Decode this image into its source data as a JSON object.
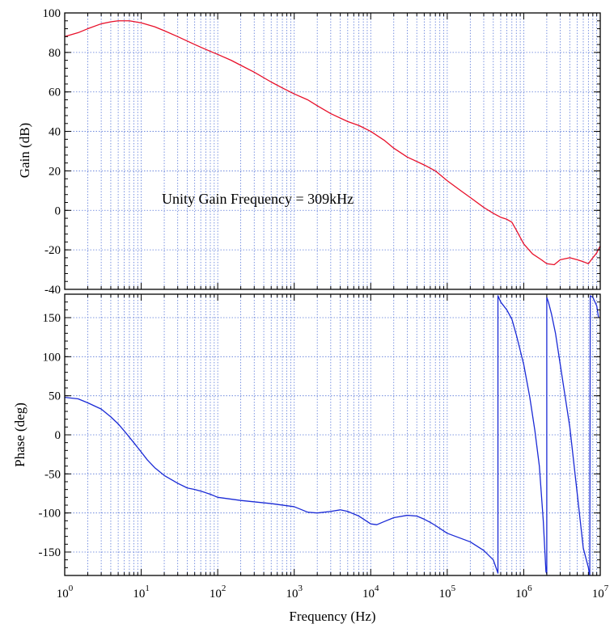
{
  "chart_data": [
    {
      "type": "line",
      "panel": "gain",
      "title": "",
      "xlabel": "",
      "ylabel": "Gain (dB)",
      "xscale": "log",
      "xlim": [
        1,
        10000000
      ],
      "ylim": [
        -40,
        100
      ],
      "yticks": [
        -40,
        -20,
        0,
        20,
        40,
        60,
        80,
        100
      ],
      "grid": true,
      "annotation": "Unity Gain Frequency = 309kHz",
      "colors": {
        "series": "#e8102a"
      },
      "series": [
        {
          "x": [
            1,
            1.5,
            2,
            3,
            4,
            5,
            7,
            10,
            15,
            20,
            30,
            50,
            70,
            100,
            150,
            200,
            300,
            500,
            700,
            1000,
            1500,
            2000,
            3000,
            5000,
            7000,
            10000,
            15000,
            20000,
            30000,
            50000,
            70000,
            100000,
            150000,
            200000,
            300000,
            400000,
            500000,
            600000,
            700000,
            800000,
            1000000,
            1300000,
            1700000,
            2000000,
            2500000,
            3000000,
            4000000,
            5000000,
            6000000,
            7000000,
            8000000,
            9000000,
            10000000
          ],
          "y": [
            88,
            90,
            92,
            94.5,
            95.5,
            96,
            96,
            95,
            93,
            91,
            88,
            84,
            81.5,
            79,
            76,
            73.5,
            70,
            65,
            62,
            59,
            56,
            53,
            49,
            45,
            43,
            40,
            35.5,
            31.5,
            27,
            23,
            20,
            15,
            10,
            6.5,
            1.5,
            -1.5,
            -3.5,
            -4.5,
            -6,
            -10,
            -17,
            -22,
            -25,
            -27,
            -27.5,
            -25,
            -24,
            -25,
            -26,
            -27,
            -24,
            -21.5,
            -18
          ]
        }
      ]
    },
    {
      "type": "line",
      "panel": "phase",
      "title": "",
      "xlabel": "Frequency (Hz)",
      "ylabel": "Phase (deg)",
      "xscale": "log",
      "xlim": [
        1,
        10000000
      ],
      "ylim": [
        -180,
        180
      ],
      "yticks": [
        -150,
        -100,
        -50,
        0,
        50,
        100,
        150
      ],
      "xticks": [
        1,
        10,
        100,
        1000,
        10000,
        100000,
        1000000,
        10000000
      ],
      "xtick_labels": [
        {
          "base": "10",
          "exp": "0"
        },
        {
          "base": "10",
          "exp": "1"
        },
        {
          "base": "10",
          "exp": "2"
        },
        {
          "base": "10",
          "exp": "3"
        },
        {
          "base": "10",
          "exp": "4"
        },
        {
          "base": "10",
          "exp": "5"
        },
        {
          "base": "10",
          "exp": "6"
        },
        {
          "base": "10",
          "exp": "7"
        }
      ],
      "grid": true,
      "colors": {
        "series": "#1a2ad6"
      },
      "series": [
        {
          "x": [
            1,
            1.5,
            2,
            3,
            4,
            5,
            6,
            8,
            10,
            12,
            15,
            20,
            30,
            40,
            50,
            60,
            80,
            100,
            200,
            500,
            1000,
            1500,
            2000,
            3000,
            4000,
            5000,
            7000,
            10000,
            12000,
            15000,
            20000,
            30000,
            40000,
            50000,
            60000,
            70000,
            100000,
            200000,
            300000,
            400000,
            460000,
            460000,
            470000,
            500000,
            600000,
            700000,
            800000,
            1000000,
            1200000,
            1400000,
            1600000,
            1800000,
            1950000,
            2000000,
            2000000,
            2100000,
            2300000,
            2600000,
            3000000,
            4000000,
            5000000,
            6000000,
            7000000,
            7200000,
            7300000,
            7400000,
            8000000,
            9000000,
            9500000
          ],
          "y": [
            48,
            46,
            41,
            33,
            23,
            14,
            5,
            -10,
            -22,
            -32,
            -42,
            -52,
            -62,
            -68,
            -70,
            -72,
            -76,
            -80,
            -84,
            -88,
            -92,
            -99,
            -100,
            -98,
            -96,
            -98,
            -104,
            -114,
            -115,
            -111,
            -106,
            -103,
            -104,
            -108,
            -112,
            -116,
            -126,
            -137,
            -148,
            -160,
            -177,
            178,
            176,
            170,
            160,
            148,
            128,
            90,
            48,
            5,
            -40,
            -110,
            -175,
            -178,
            176,
            170,
            155,
            130,
            90,
            10,
            -75,
            -145,
            -170,
            -178,
            -179,
            178,
            176,
            165,
            150
          ]
        }
      ]
    }
  ]
}
